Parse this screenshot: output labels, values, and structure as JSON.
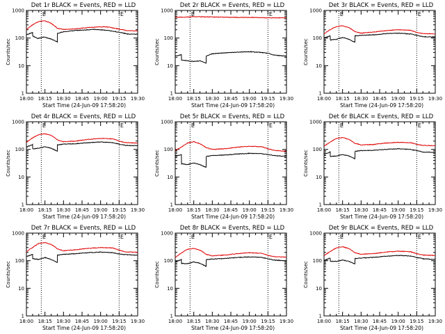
{
  "figure": {
    "x_axis_label": "Start Time (24-Jun-09 17:58:20)",
    "y_axis_label": "Counts/sec",
    "x_tick_labels": [
      "18:00",
      "18:15",
      "18:30",
      "18:45",
      "19:00",
      "19:15",
      "19:30"
    ],
    "y_tick_labels": [
      "1",
      "10",
      "100",
      "1000"
    ],
    "event_labels": [
      "E",
      "E"
    ],
    "colors": {
      "events": "#000000",
      "lld": "#e00000",
      "axes": "#000000",
      "background": "#ffffff"
    }
  },
  "chart_data": [
    {
      "type": "line",
      "title": "Det 1r BLACK = Events, RED = LLD",
      "xlabel": "Start Time (24-Jun-09 17:58:20)",
      "ylabel": "Counts/sec",
      "x_unit": "minutes since 18:00",
      "xlim": [
        0,
        90
      ],
      "ylim": [
        1,
        1000
      ],
      "yscale": "log",
      "x_ticks": [
        0,
        15,
        30,
        45,
        60,
        75,
        90
      ],
      "event_markers": [
        12,
        75
      ],
      "series": [
        {
          "name": "Events",
          "color": "#000000",
          "x": [
            0,
            5,
            5.1,
            9,
            14,
            20,
            25,
            25.1,
            30,
            40,
            55,
            65,
            75,
            82,
            90
          ],
          "values": [
            130,
            160,
            120,
            95,
            108,
            92,
            72,
            148,
            168,
            188,
            205,
            192,
            162,
            140,
            138
          ]
        },
        {
          "name": "LLD",
          "color": "#e00000",
          "x": [
            0,
            5,
            10,
            15,
            20,
            25,
            30,
            40,
            50,
            60,
            65,
            75,
            82,
            90
          ],
          "values": [
            200,
            300,
            400,
            420,
            340,
            225,
            205,
            215,
            240,
            255,
            255,
            210,
            185,
            180
          ]
        }
      ]
    },
    {
      "type": "line",
      "title": "Det 2r BLACK = Events, RED = LLD",
      "xlabel": "Start Time (24-Jun-09 17:58:20)",
      "ylabel": "Counts/sec",
      "x_unit": "minutes since 18:00",
      "xlim": [
        0,
        90
      ],
      "ylim": [
        1,
        1000
      ],
      "yscale": "log",
      "x_ticks": [
        0,
        15,
        30,
        45,
        60,
        75,
        90
      ],
      "event_markers": [
        12,
        75
      ],
      "series": [
        {
          "name": "Events",
          "color": "#000000",
          "x": [
            0,
            5,
            5.1,
            10,
            15,
            20,
            25,
            25.1,
            30,
            45,
            60,
            70,
            75,
            80,
            90
          ],
          "values": [
            22,
            25,
            16,
            15,
            14,
            15,
            12,
            22,
            27,
            30,
            32,
            30,
            28,
            24,
            22
          ]
        },
        {
          "name": "LLD",
          "color": "#e00000",
          "x": [
            0,
            10,
            15,
            20,
            30,
            45,
            60,
            75,
            90
          ],
          "values": [
            560,
            580,
            600,
            590,
            580,
            560,
            560,
            540,
            540
          ]
        }
      ]
    },
    {
      "type": "line",
      "title": "Det 3r BLACK = Events, RED = LLD",
      "xlabel": "Start Time (24-Jun-09 17:58:20)",
      "ylabel": "Counts/sec",
      "x_unit": "minutes since 18:00",
      "xlim": [
        0,
        90
      ],
      "ylim": [
        1,
        1000
      ],
      "yscale": "log",
      "x_ticks": [
        0,
        15,
        30,
        45,
        60,
        75,
        90
      ],
      "event_markers": [
        12,
        75
      ],
      "series": [
        {
          "name": "Events",
          "color": "#000000",
          "x": [
            0,
            5,
            5.1,
            10,
            15,
            20,
            25,
            25.1,
            30,
            40,
            50,
            60,
            70,
            75,
            80,
            90
          ],
          "values": [
            100,
            120,
            85,
            90,
            105,
            90,
            70,
            120,
            125,
            130,
            145,
            150,
            140,
            125,
            112,
            110
          ]
        },
        {
          "name": "LLD",
          "color": "#e00000",
          "x": [
            0,
            5,
            10,
            15,
            20,
            25,
            30,
            40,
            50,
            60,
            70,
            75,
            80,
            90
          ],
          "values": [
            140,
            200,
            260,
            280,
            240,
            170,
            150,
            165,
            185,
            200,
            190,
            160,
            145,
            140
          ]
        }
      ]
    },
    {
      "type": "line",
      "title": "Det 4r BLACK = Events, RED = LLD",
      "xlabel": "Start Time (24-Jun-09 17:58:20)",
      "ylabel": "Counts/sec",
      "x_unit": "minutes since 18:00",
      "xlim": [
        0,
        90
      ],
      "ylim": [
        1,
        1000
      ],
      "yscale": "log",
      "x_ticks": [
        0,
        15,
        30,
        45,
        60,
        75,
        90
      ],
      "event_markers": [
        12,
        75
      ],
      "series": [
        {
          "name": "Events",
          "color": "#000000",
          "x": [
            0,
            5,
            5.1,
            10,
            15,
            20,
            25,
            25.1,
            30,
            40,
            50,
            60,
            70,
            75,
            80,
            90
          ],
          "values": [
            120,
            150,
            105,
            110,
            125,
            110,
            85,
            145,
            155,
            160,
            175,
            185,
            175,
            155,
            140,
            135
          ]
        },
        {
          "name": "LLD",
          "color": "#e00000",
          "x": [
            0,
            5,
            10,
            15,
            20,
            25,
            30,
            40,
            50,
            60,
            70,
            75,
            80,
            90
          ],
          "values": [
            180,
            260,
            340,
            370,
            320,
            220,
            190,
            200,
            230,
            250,
            240,
            200,
            175,
            170
          ]
        }
      ]
    },
    {
      "type": "line",
      "title": "Det 5r BLACK = Events, RED = LLD",
      "xlabel": "Start Time (24-Jun-09 17:58:20)",
      "ylabel": "Counts/sec",
      "x_unit": "minutes since 18:00",
      "xlim": [
        0,
        90
      ],
      "ylim": [
        1,
        1000
      ],
      "yscale": "log",
      "x_ticks": [
        0,
        15,
        30,
        45,
        60,
        75,
        90
      ],
      "event_markers": [
        12,
        75
      ],
      "series": [
        {
          "name": "Events",
          "color": "#000000",
          "x": [
            0,
            5,
            5.1,
            10,
            15,
            20,
            25,
            25.1,
            30,
            40,
            50,
            60,
            70,
            75,
            80,
            90
          ],
          "values": [
            55,
            65,
            30,
            28,
            32,
            28,
            22,
            55,
            60,
            62,
            68,
            72,
            70,
            65,
            60,
            55
          ]
        },
        {
          "name": "LLD",
          "color": "#e00000",
          "x": [
            0,
            5,
            10,
            15,
            20,
            25,
            30,
            40,
            50,
            60,
            70,
            75,
            80,
            90
          ],
          "values": [
            90,
            120,
            170,
            190,
            160,
            115,
            100,
            105,
            120,
            130,
            125,
            105,
            92,
            85
          ]
        }
      ]
    },
    {
      "type": "line",
      "title": "Det 6r BLACK = Events, RED = LLD",
      "xlabel": "Start Time (24-Jun-09 17:58:20)",
      "ylabel": "Counts/sec",
      "x_unit": "minutes since 18:00",
      "xlim": [
        0,
        90
      ],
      "ylim": [
        1,
        1000
      ],
      "yscale": "log",
      "x_ticks": [
        0,
        15,
        30,
        45,
        60,
        75,
        90
      ],
      "event_markers": [
        12,
        75
      ],
      "series": [
        {
          "name": "Events",
          "color": "#000000",
          "x": [
            0,
            5,
            5.1,
            10,
            15,
            20,
            25,
            25.1,
            30,
            40,
            50,
            60,
            70,
            75,
            80,
            90
          ],
          "values": [
            65,
            80,
            55,
            58,
            65,
            58,
            45,
            85,
            90,
            92,
            100,
            105,
            100,
            90,
            80,
            78
          ]
        },
        {
          "name": "LLD",
          "color": "#e00000",
          "x": [
            0,
            5,
            10,
            15,
            20,
            25,
            30,
            40,
            50,
            60,
            70,
            75,
            80,
            90
          ],
          "values": [
            130,
            180,
            250,
            270,
            230,
            165,
            145,
            150,
            170,
            180,
            175,
            150,
            140,
            135
          ]
        }
      ]
    },
    {
      "type": "line",
      "title": "Det 7r BLACK = Events, RED = LLD",
      "xlabel": "Start Time (24-Jun-09 17:58:20)",
      "ylabel": "Counts/sec",
      "x_unit": "minutes since 18:00",
      "xlim": [
        0,
        90
      ],
      "ylim": [
        1,
        1000
      ],
      "yscale": "log",
      "x_ticks": [
        0,
        15,
        30,
        45,
        60,
        75,
        90
      ],
      "event_markers": [
        12,
        75
      ],
      "series": [
        {
          "name": "Events",
          "color": "#000000",
          "x": [
            0,
            5,
            5.1,
            10,
            15,
            20,
            25,
            25.1,
            30,
            40,
            50,
            60,
            70,
            75,
            80,
            90
          ],
          "values": [
            140,
            170,
            120,
            110,
            130,
            110,
            85,
            160,
            170,
            180,
            195,
            205,
            195,
            175,
            165,
            160
          ]
        },
        {
          "name": "LLD",
          "color": "#e00000",
          "x": [
            0,
            5,
            10,
            15,
            20,
            25,
            30,
            40,
            50,
            60,
            70,
            75,
            80,
            90
          ],
          "values": [
            210,
            300,
            420,
            460,
            390,
            270,
            230,
            250,
            280,
            300,
            290,
            240,
            210,
            200
          ]
        }
      ]
    },
    {
      "type": "line",
      "title": "Det 8r BLACK = Events, RED = LLD",
      "xlabel": "Start Time (24-Jun-09 17:58:20)",
      "ylabel": "Counts/sec",
      "x_unit": "minutes since 18:00",
      "xlim": [
        0,
        90
      ],
      "ylim": [
        1,
        1000
      ],
      "yscale": "log",
      "x_ticks": [
        0,
        15,
        30,
        45,
        60,
        75,
        90
      ],
      "event_markers": [
        12,
        75
      ],
      "series": [
        {
          "name": "Events",
          "color": "#000000",
          "x": [
            0,
            5,
            5.1,
            10,
            15,
            20,
            25,
            25.1,
            30,
            40,
            50,
            60,
            70,
            75,
            80,
            90
          ],
          "values": [
            90,
            110,
            80,
            78,
            90,
            80,
            62,
            110,
            115,
            120,
            130,
            138,
            132,
            118,
            105,
            100
          ]
        },
        {
          "name": "LLD",
          "color": "#e00000",
          "x": [
            0,
            5,
            10,
            15,
            20,
            25,
            30,
            40,
            50,
            60,
            70,
            75,
            80,
            90
          ],
          "values": [
            130,
            190,
            260,
            280,
            240,
            170,
            150,
            160,
            180,
            195,
            185,
            155,
            140,
            135
          ]
        }
      ]
    },
    {
      "type": "line",
      "title": "Det 9r BLACK = Events, RED = LLD",
      "xlabel": "Start Time (24-Jun-09 17:58:20)",
      "ylabel": "Counts/sec",
      "x_unit": "minutes since 18:00",
      "xlim": [
        0,
        90
      ],
      "ylim": [
        1,
        1000
      ],
      "yscale": "log",
      "x_ticks": [
        0,
        15,
        30,
        45,
        60,
        75,
        90
      ],
      "event_markers": [
        12,
        75
      ],
      "series": [
        {
          "name": "Events",
          "color": "#000000",
          "x": [
            0,
            5,
            5.1,
            10,
            15,
            20,
            25,
            25.1,
            30,
            40,
            50,
            60,
            70,
            75,
            80,
            90
          ],
          "values": [
            100,
            125,
            95,
            95,
            105,
            95,
            75,
            120,
            125,
            132,
            145,
            155,
            148,
            132,
            118,
            112
          ]
        },
        {
          "name": "LLD",
          "color": "#e00000",
          "x": [
            0,
            5,
            10,
            15,
            20,
            25,
            30,
            40,
            50,
            60,
            70,
            75,
            80,
            90
          ],
          "values": [
            150,
            215,
            290,
            320,
            275,
            195,
            170,
            180,
            205,
            220,
            210,
            178,
            160,
            155
          ]
        }
      ]
    }
  ]
}
